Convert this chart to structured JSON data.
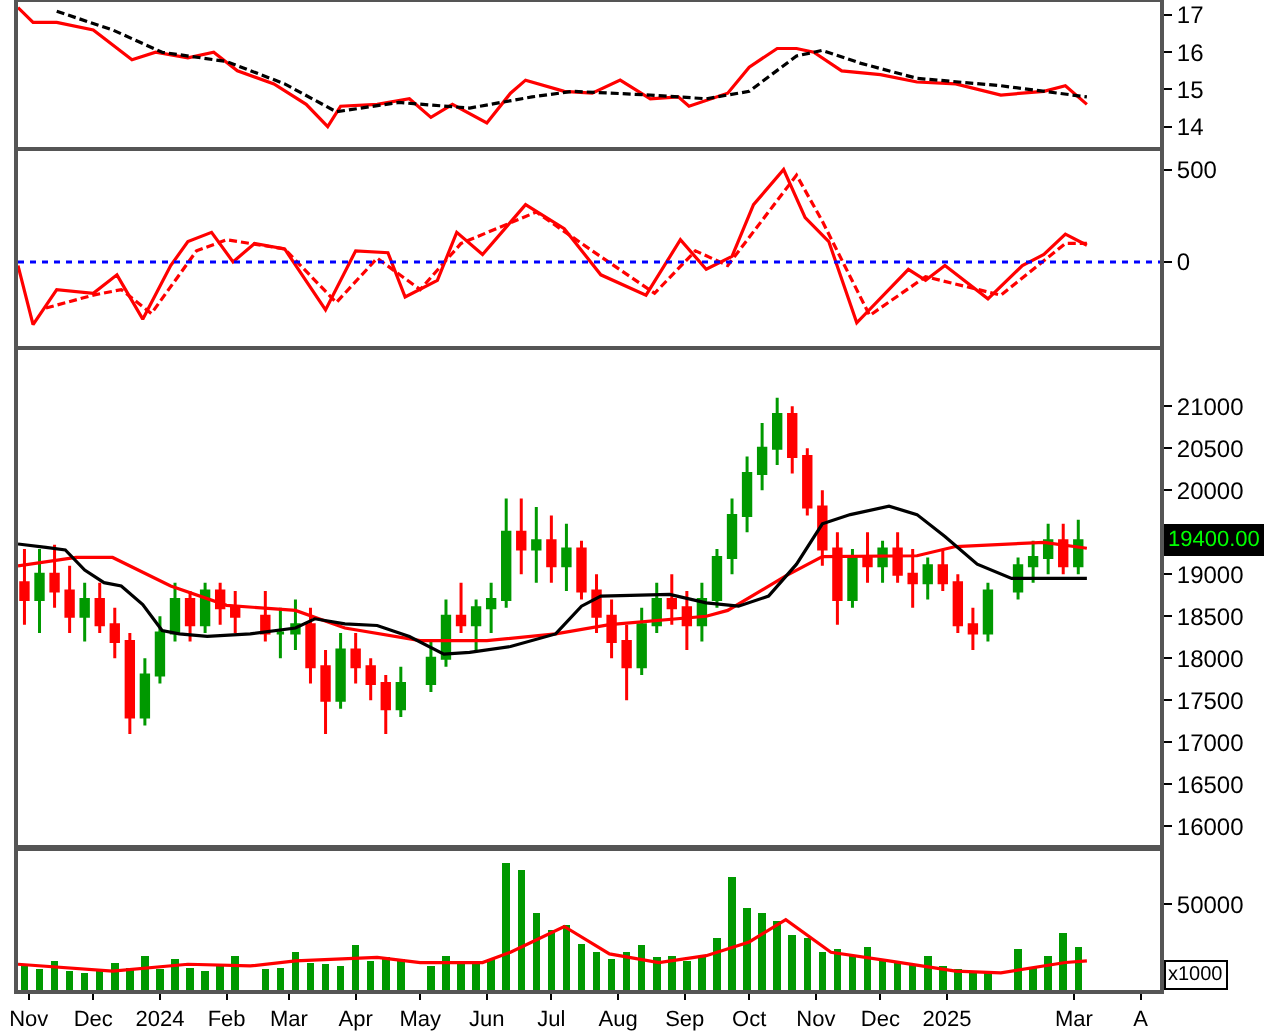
{
  "chart_data": [
    {
      "type": "line",
      "xlim": [
        "2023-10-27",
        "2025-04-10"
      ],
      "ylim": [
        13.45,
        17.35
      ],
      "yticks": [
        14,
        15,
        16,
        17
      ],
      "tick_labels": "y",
      "marker": "none",
      "series": [
        {
          "color": "#ff0000",
          "line_style": "solid",
          "x": [
            "2023-10-27",
            "2023-11-03",
            "2023-11-14",
            "2023-12-01",
            "2023-12-19",
            "2023-12-30",
            "2024-01-14",
            "2024-01-26",
            "2024-02-06",
            "2024-02-23",
            "2024-03-09",
            "2024-03-19",
            "2024-03-25",
            "2024-04-11",
            "2024-04-26",
            "2024-05-06",
            "2024-05-16",
            "2024-06-01",
            "2024-06-12",
            "2024-06-19",
            "2024-07-07",
            "2024-07-20",
            "2024-08-02",
            "2024-08-16",
            "2024-08-29",
            "2024-09-03",
            "2024-09-21",
            "2024-10-01",
            "2024-10-14",
            "2024-10-23",
            "2024-10-31",
            "2024-11-13",
            "2024-12-01",
            "2024-12-18",
            "2025-01-05",
            "2025-01-26",
            "2025-02-15",
            "2025-02-25",
            "2025-03-07"
          ],
          "values": [
            17.2,
            16.8,
            16.8,
            16.6,
            15.8,
            16.0,
            15.85,
            16.0,
            15.5,
            15.15,
            14.6,
            14.0,
            14.55,
            14.6,
            14.75,
            14.25,
            14.6,
            14.1,
            14.9,
            15.25,
            14.95,
            14.9,
            15.25,
            14.75,
            14.8,
            14.55,
            14.9,
            15.6,
            16.1,
            16.1,
            16.0,
            15.5,
            15.4,
            15.2,
            15.15,
            14.85,
            14.95,
            15.1,
            14.6
          ]
        },
        {
          "color": "#000000",
          "line_style": "dashed",
          "x": [
            "2023-11-14",
            "2023-12-10",
            "2024-01-02",
            "2024-02-01",
            "2024-02-28",
            "2024-03-23",
            "2024-04-21",
            "2024-05-24",
            "2024-06-22",
            "2024-07-11",
            "2024-08-16",
            "2024-09-11",
            "2024-10-01",
            "2024-10-23",
            "2024-11-04",
            "2024-11-22",
            "2024-12-18",
            "2025-01-26",
            "2025-03-07"
          ],
          "values": [
            17.1,
            16.6,
            16.0,
            15.75,
            15.15,
            14.4,
            14.65,
            14.5,
            14.8,
            14.95,
            14.85,
            14.75,
            14.95,
            15.9,
            16.05,
            15.7,
            15.3,
            15.1,
            14.8
          ]
        }
      ]
    },
    {
      "type": "line",
      "xlim": [
        "2023-10-27",
        "2025-04-10"
      ],
      "ylim": [
        -455,
        600
      ],
      "yticks": [
        0,
        500
      ],
      "tick_labels": "y",
      "marker": "none",
      "ref_lines": [
        {
          "axis": "y",
          "value": 0,
          "color": "#0000ff",
          "line_style": "dotted"
        }
      ],
      "series": [
        {
          "color": "#ff0000",
          "line_style": "solid",
          "x": [
            "2023-10-27",
            "2023-11-03",
            "2023-11-14",
            "2023-12-01",
            "2023-12-12",
            "2023-12-24",
            "2024-01-06",
            "2024-01-14",
            "2024-01-25",
            "2024-02-04",
            "2024-02-14",
            "2024-02-28",
            "2024-03-18",
            "2024-04-01",
            "2024-04-16",
            "2024-04-24",
            "2024-05-09",
            "2024-05-18",
            "2024-05-30",
            "2024-06-19",
            "2024-07-07",
            "2024-07-24",
            "2024-08-14",
            "2024-08-30",
            "2024-09-11",
            "2024-09-23",
            "2024-10-03",
            "2024-10-17",
            "2024-10-27",
            "2024-11-07",
            "2024-11-20",
            "2024-12-14",
            "2024-12-22",
            "2024-12-31",
            "2025-01-20",
            "2025-02-05",
            "2025-02-15",
            "2025-02-25",
            "2025-03-07"
          ],
          "values": [
            -20,
            -340,
            -150,
            -170,
            -70,
            -310,
            -20,
            110,
            160,
            0,
            100,
            70,
            -260,
            60,
            50,
            -190,
            -100,
            160,
            40,
            310,
            180,
            -70,
            -180,
            120,
            -40,
            30,
            310,
            500,
            240,
            110,
            -330,
            -40,
            -100,
            -20,
            -200,
            -20,
            40,
            150,
            90
          ]
        },
        {
          "color": "#ff0000",
          "line_style": "dashed",
          "x": [
            "2023-11-09",
            "2023-12-01",
            "2023-12-14",
            "2023-12-28",
            "2024-01-18",
            "2024-02-01",
            "2024-02-28",
            "2024-03-23",
            "2024-04-11",
            "2024-05-01",
            "2024-05-20",
            "2024-06-24",
            "2024-07-20",
            "2024-08-18",
            "2024-09-06",
            "2024-09-21",
            "2024-10-23",
            "2024-11-04",
            "2024-11-26",
            "2024-12-22",
            "2025-01-26",
            "2025-02-25",
            "2025-03-07"
          ],
          "values": [
            -250,
            -180,
            -150,
            -280,
            60,
            120,
            70,
            -220,
            20,
            -150,
            100,
            270,
            60,
            -170,
            60,
            -20,
            470,
            220,
            -290,
            -80,
            -180,
            100,
            100
          ]
        }
      ]
    },
    {
      "type": "candlestick",
      "xlim": [
        "2023-10-27",
        "2025-04-10"
      ],
      "ylim": [
        15780,
        21670
      ],
      "yticks": [
        16000,
        16500,
        17000,
        17500,
        18000,
        18500,
        19000,
        20000,
        20500,
        21000
      ],
      "tick_labels": "y",
      "marker": "none",
      "annotations": [
        "19400.00"
      ],
      "x": [
        "2023-10-30",
        "2023-11-06",
        "2023-11-13",
        "2023-11-20",
        "2023-11-27",
        "2023-12-04",
        "2023-12-11",
        "2023-12-18",
        "2023-12-25",
        "2024-01-01",
        "2024-01-08",
        "2024-01-15",
        "2024-01-22",
        "2024-01-29",
        "2024-02-05",
        "2024-02-19",
        "2024-02-26",
        "2024-03-04",
        "2024-03-11",
        "2024-03-18",
        "2024-03-25",
        "2024-04-01",
        "2024-04-08",
        "2024-04-15",
        "2024-04-22",
        "2024-05-06",
        "2024-05-13",
        "2024-05-20",
        "2024-05-27",
        "2024-06-03",
        "2024-06-10",
        "2024-06-17",
        "2024-06-24",
        "2024-07-01",
        "2024-07-08",
        "2024-07-15",
        "2024-07-22",
        "2024-07-29",
        "2024-08-05",
        "2024-08-12",
        "2024-08-19",
        "2024-08-26",
        "2024-09-02",
        "2024-09-09",
        "2024-09-16",
        "2024-09-23",
        "2024-09-30",
        "2024-10-07",
        "2024-10-14",
        "2024-10-21",
        "2024-10-28",
        "2024-11-04",
        "2024-11-11",
        "2024-11-18",
        "2024-11-25",
        "2024-12-02",
        "2024-12-09",
        "2024-12-16",
        "2024-12-23",
        "2024-12-30",
        "2025-01-06",
        "2025-01-13",
        "2025-01-20",
        "2025-02-03",
        "2025-02-10",
        "2025-02-17",
        "2025-02-24",
        "2025-03-03"
      ],
      "ohlc": [
        [
          18900,
          19300,
          18400,
          18700
        ],
        [
          18700,
          19300,
          18300,
          19000
        ],
        [
          19000,
          19350,
          18600,
          18800
        ],
        [
          18800,
          19100,
          18300,
          18500
        ],
        [
          18500,
          18900,
          18200,
          18700
        ],
        [
          18700,
          18900,
          18300,
          18400
        ],
        [
          18400,
          18600,
          18000,
          18200
        ],
        [
          18200,
          18300,
          17100,
          17300
        ],
        [
          17300,
          18000,
          17200,
          17800
        ],
        [
          17800,
          18500,
          17700,
          18300
        ],
        [
          18300,
          18900,
          18200,
          18700
        ],
        [
          18700,
          18800,
          18200,
          18400
        ],
        [
          18400,
          18900,
          18300,
          18800
        ],
        [
          18800,
          18900,
          18400,
          18600
        ],
        [
          18600,
          18800,
          18300,
          18500
        ],
        [
          18500,
          18800,
          18200,
          18300
        ],
        [
          18300,
          18600,
          18000,
          18300
        ],
        [
          18300,
          18700,
          18100,
          18400
        ],
        [
          18400,
          18600,
          17700,
          17900
        ],
        [
          17900,
          18100,
          17100,
          17500
        ],
        [
          17500,
          18300,
          17400,
          18100
        ],
        [
          18100,
          18300,
          17700,
          17900
        ],
        [
          17900,
          18000,
          17500,
          17700
        ],
        [
          17700,
          17800,
          17100,
          17400
        ],
        [
          17400,
          17900,
          17300,
          17700
        ],
        [
          17700,
          18200,
          17600,
          18000
        ],
        [
          18000,
          18700,
          17900,
          18500
        ],
        [
          18500,
          18900,
          18300,
          18400
        ],
        [
          18400,
          18700,
          18100,
          18600
        ],
        [
          18600,
          18900,
          18300,
          18700
        ],
        [
          18700,
          19900,
          18600,
          19500
        ],
        [
          19500,
          19900,
          19000,
          19300
        ],
        [
          19300,
          19800,
          18900,
          19400
        ],
        [
          19400,
          19700,
          18900,
          19100
        ],
        [
          19100,
          19600,
          18800,
          19300
        ],
        [
          19300,
          19400,
          18700,
          18800
        ],
        [
          18800,
          19000,
          18300,
          18500
        ],
        [
          18500,
          18700,
          18000,
          18200
        ],
        [
          18200,
          18400,
          17500,
          17900
        ],
        [
          17900,
          18600,
          17800,
          18400
        ],
        [
          18400,
          18900,
          18300,
          18700
        ],
        [
          18700,
          19000,
          18400,
          18600
        ],
        [
          18600,
          18800,
          18100,
          18400
        ],
        [
          18400,
          18900,
          18200,
          18700
        ],
        [
          18700,
          19300,
          18600,
          19200
        ],
        [
          19200,
          19900,
          19000,
          19700
        ],
        [
          19700,
          20400,
          19500,
          20200
        ],
        [
          20200,
          20800,
          20000,
          20500
        ],
        [
          20500,
          21100,
          20300,
          20900
        ],
        [
          20900,
          21000,
          20200,
          20400
        ],
        [
          20400,
          20500,
          19700,
          19800
        ],
        [
          19800,
          20000,
          19100,
          19300
        ],
        [
          19300,
          19500,
          18400,
          18700
        ],
        [
          18700,
          19300,
          18600,
          19200
        ],
        [
          19200,
          19500,
          18900,
          19100
        ],
        [
          19100,
          19400,
          18900,
          19300
        ],
        [
          19300,
          19500,
          18900,
          19000
        ],
        [
          19000,
          19300,
          18600,
          18900
        ],
        [
          18900,
          19200,
          18700,
          19100
        ],
        [
          19100,
          19300,
          18800,
          18900
        ],
        [
          18900,
          19000,
          18300,
          18400
        ],
        [
          18400,
          18600,
          18100,
          18300
        ],
        [
          18300,
          18900,
          18200,
          18800
        ],
        [
          18800,
          19200,
          18700,
          19100
        ],
        [
          19100,
          19400,
          18900,
          19200
        ],
        [
          19200,
          19600,
          19000,
          19400
        ],
        [
          19400,
          19600,
          19000,
          19100
        ],
        [
          19100,
          19650,
          19000,
          19400
        ]
      ],
      "colors": [
        "#ff0000",
        "#009900",
        "#ff0000",
        "#ff0000",
        "#009900",
        "#ff0000",
        "#ff0000",
        "#ff0000",
        "#009900",
        "#009900",
        "#009900",
        "#ff0000",
        "#009900",
        "#ff0000",
        "#ff0000",
        "#ff0000",
        "#009900",
        "#009900",
        "#ff0000",
        "#ff0000",
        "#009900",
        "#ff0000",
        "#ff0000",
        "#ff0000",
        "#009900",
        "#009900",
        "#009900",
        "#ff0000",
        "#009900",
        "#009900",
        "#009900",
        "#ff0000",
        "#009900",
        "#ff0000",
        "#009900",
        "#ff0000",
        "#ff0000",
        "#ff0000",
        "#ff0000",
        "#009900",
        "#009900",
        "#ff0000",
        "#ff0000",
        "#009900",
        "#009900",
        "#009900",
        "#009900",
        "#009900",
        "#009900",
        "#ff0000",
        "#ff0000",
        "#ff0000",
        "#ff0000",
        "#009900",
        "#ff0000",
        "#009900",
        "#ff0000",
        "#ff0000",
        "#009900",
        "#ff0000",
        "#ff0000",
        "#ff0000",
        "#009900",
        "#009900",
        "#009900",
        "#009900",
        "#ff0000",
        "#009900"
      ],
      "series": [
        {
          "type": "line",
          "color": "#ff0000",
          "x": [
            "2023-10-27",
            "2023-11-23",
            "2023-12-10",
            "2024-01-06",
            "2024-02-01",
            "2024-03-04",
            "2024-03-27",
            "2024-05-01",
            "2024-06-01",
            "2024-07-03",
            "2024-07-28",
            "2024-09-11",
            "2024-09-21",
            "2024-10-18",
            "2024-11-04",
            "2024-12-18",
            "2025-01-05",
            "2025-02-15",
            "2025-03-07"
          ],
          "values": [
            19100,
            19200,
            19200,
            18860,
            18630,
            18570,
            18360,
            18210,
            18210,
            18290,
            18400,
            18500,
            18570,
            18980,
            19210,
            19220,
            19330,
            19380,
            19310
          ]
        },
        {
          "type": "line",
          "color": "#000000",
          "x": [
            "2023-10-27",
            "2023-11-09",
            "2023-11-18",
            "2023-11-27",
            "2023-12-06",
            "2023-12-14",
            "2023-12-24",
            "2024-01-02",
            "2024-01-10",
            "2024-01-23",
            "2024-02-12",
            "2024-03-04",
            "2024-03-13",
            "2024-03-27",
            "2024-04-11",
            "2024-04-26",
            "2024-05-12",
            "2024-05-24",
            "2024-06-12",
            "2024-07-03",
            "2024-07-15",
            "2024-07-24",
            "2024-08-25",
            "2024-09-11",
            "2024-09-26",
            "2024-10-10",
            "2024-10-23",
            "2024-11-04",
            "2024-11-17",
            "2024-12-05",
            "2024-12-18",
            "2024-12-31",
            "2025-01-15",
            "2025-01-31",
            "2025-02-15",
            "2025-03-07"
          ],
          "values": [
            19360,
            19320,
            19290,
            19050,
            18900,
            18860,
            18640,
            18330,
            18290,
            18260,
            18290,
            18360,
            18470,
            18410,
            18390,
            18260,
            18050,
            18070,
            18140,
            18290,
            18620,
            18740,
            18760,
            18660,
            18620,
            18740,
            19120,
            19600,
            19710,
            19810,
            19710,
            19450,
            19120,
            18950,
            18950,
            18950
          ]
        }
      ]
    },
    {
      "type": "bar",
      "xlim": [
        "2023-10-27",
        "2025-04-10"
      ],
      "ylim": [
        0,
        81000
      ],
      "yticks": [
        50000
      ],
      "marker": "none",
      "annotations": [
        "x1000"
      ],
      "xticks": [
        {
          "value": "2023-11-01",
          "label": "Nov"
        },
        {
          "value": "2023-12-01",
          "label": "Dec"
        },
        {
          "value": "2024-01-01",
          "label": "2024"
        },
        {
          "value": "2024-02-01",
          "label": "Feb"
        },
        {
          "value": "2024-03-01",
          "label": "Mar"
        },
        {
          "value": "2024-04-01",
          "label": "Apr"
        },
        {
          "value": "2024-05-01",
          "label": "May"
        },
        {
          "value": "2024-06-01",
          "label": "Jun"
        },
        {
          "value": "2024-07-01",
          "label": "Jul"
        },
        {
          "value": "2024-08-01",
          "label": "Aug"
        },
        {
          "value": "2024-09-01",
          "label": "Sep"
        },
        {
          "value": "2024-10-01",
          "label": "Oct"
        },
        {
          "value": "2024-11-01",
          "label": "Nov"
        },
        {
          "value": "2024-12-01",
          "label": "Dec"
        },
        {
          "value": "2025-01-01",
          "label": "2025"
        },
        {
          "value": "2025-03-01",
          "label": "Mar"
        },
        {
          "value": "2025-04-01",
          "label": "A"
        }
      ],
      "x": [
        "2023-10-30",
        "2023-11-06",
        "2023-11-13",
        "2023-11-20",
        "2023-11-27",
        "2023-12-04",
        "2023-12-11",
        "2023-12-18",
        "2023-12-25",
        "2024-01-01",
        "2024-01-08",
        "2024-01-15",
        "2024-01-22",
        "2024-01-29",
        "2024-02-05",
        "2024-02-19",
        "2024-02-26",
        "2024-03-04",
        "2024-03-11",
        "2024-03-18",
        "2024-03-25",
        "2024-04-01",
        "2024-04-08",
        "2024-04-15",
        "2024-04-22",
        "2024-05-06",
        "2024-05-13",
        "2024-05-20",
        "2024-05-27",
        "2024-06-03",
        "2024-06-10",
        "2024-06-17",
        "2024-06-24",
        "2024-07-01",
        "2024-07-08",
        "2024-07-15",
        "2024-07-22",
        "2024-07-29",
        "2024-08-05",
        "2024-08-12",
        "2024-08-19",
        "2024-08-26",
        "2024-09-02",
        "2024-09-09",
        "2024-09-16",
        "2024-09-23",
        "2024-09-30",
        "2024-10-07",
        "2024-10-14",
        "2024-10-21",
        "2024-10-28",
        "2024-11-04",
        "2024-11-11",
        "2024-11-18",
        "2024-11-25",
        "2024-12-02",
        "2024-12-09",
        "2024-12-16",
        "2024-12-23",
        "2024-12-30",
        "2025-01-06",
        "2025-01-13",
        "2025-01-20",
        "2025-02-03",
        "2025-02-10",
        "2025-02-17",
        "2025-02-24",
        "2025-03-03"
      ],
      "series": [
        {
          "type": "bar",
          "color": "#009900",
          "values": [
            14000,
            12000,
            17000,
            11000,
            10000,
            12000,
            16000,
            13000,
            20000,
            12000,
            18000,
            13000,
            11000,
            14000,
            20000,
            12000,
            13000,
            22000,
            16000,
            15000,
            14000,
            26000,
            17000,
            19000,
            18000,
            14000,
            20000,
            15000,
            16000,
            18000,
            74000,
            70000,
            45000,
            35000,
            38000,
            27000,
            22000,
            18000,
            22000,
            26000,
            19000,
            20000,
            17000,
            19000,
            30000,
            66000,
            48000,
            45000,
            40000,
            32000,
            30000,
            22000,
            24000,
            20000,
            25000,
            18000,
            16000,
            15000,
            20000,
            14000,
            12000,
            10000,
            11000,
            24000,
            13000,
            20000,
            33000,
            25000
          ]
        },
        {
          "type": "line",
          "color": "#ff0000",
          "x": [
            "2023-10-27",
            "2023-12-10",
            "2024-01-14",
            "2024-02-12",
            "2024-03-04",
            "2024-04-11",
            "2024-05-01",
            "2024-05-30",
            "2024-06-12",
            "2024-07-07",
            "2024-07-28",
            "2024-08-20",
            "2024-09-11",
            "2024-10-01",
            "2024-10-18",
            "2024-11-08",
            "2024-12-05",
            "2025-01-05",
            "2025-01-26",
            "2025-02-25",
            "2025-03-07"
          ],
          "values": [
            15000,
            11000,
            15000,
            14000,
            17000,
            19000,
            16000,
            16000,
            22000,
            37000,
            21000,
            16000,
            20000,
            28000,
            41000,
            22000,
            17000,
            11000,
            10000,
            16000,
            17000
          ]
        }
      ]
    }
  ]
}
